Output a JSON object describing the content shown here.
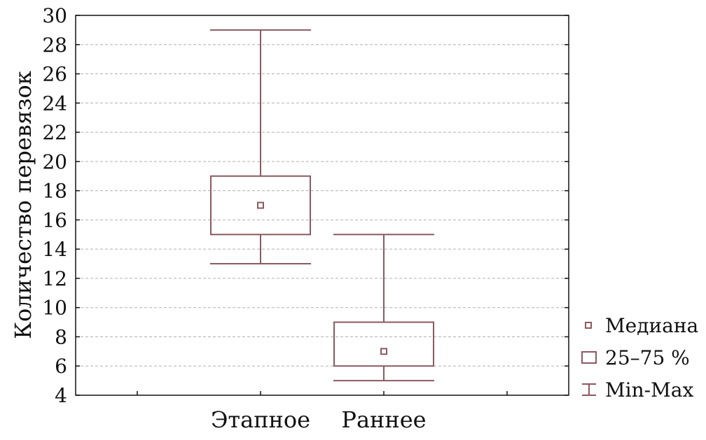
{
  "chart_data": {
    "type": "boxplot",
    "title": "",
    "xlabel": "",
    "ylabel": "Количество перевязок",
    "ylim": [
      4,
      30
    ],
    "yticks": [
      4,
      6,
      8,
      10,
      12,
      14,
      16,
      18,
      20,
      22,
      24,
      26,
      28,
      30
    ],
    "grid": true,
    "categories": [
      "Этапное",
      "Раннее"
    ],
    "series": [
      {
        "name": "Этапное",
        "min": 13,
        "q1": 15,
        "median": 17,
        "q3": 19,
        "max": 29
      },
      {
        "name": "Раннее",
        "min": 5,
        "q1": 6,
        "median": 7,
        "q3": 9,
        "max": 15
      }
    ],
    "legend": {
      "placement": "right",
      "items": [
        {
          "label": "Медиана",
          "symbol": "small-square"
        },
        {
          "label": "25–75 %",
          "symbol": "box"
        },
        {
          "label": "Min-Max",
          "symbol": "whisker"
        }
      ]
    },
    "colors": {
      "box": "#8a5a60",
      "grid": "#b0b0b0",
      "axis": "#111111"
    }
  }
}
